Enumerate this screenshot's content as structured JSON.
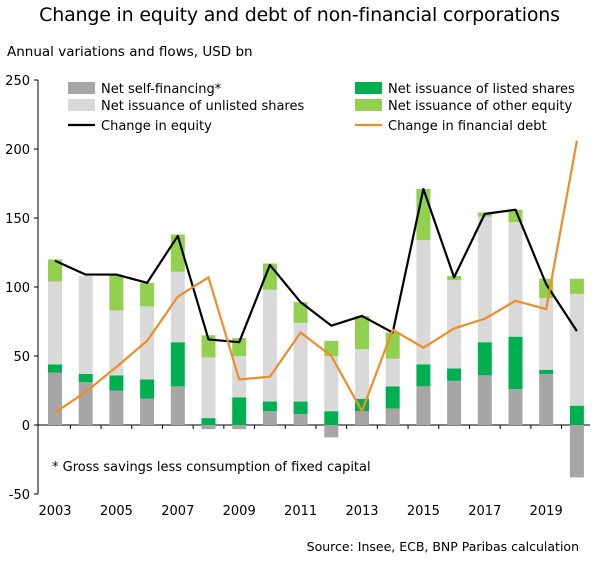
{
  "title": "Change in equity and debt of non-financial corporations",
  "subtitle": "Annual variations and flows, USD bn",
  "source": "Source: Insee, ECB, BNP Paribas calculation",
  "footnote": "* Gross savings less consumption of fixed capital",
  "chart_data": {
    "type": "bar",
    "stacked": true,
    "ylim": [
      -50,
      250
    ],
    "yticks": [
      -50,
      0,
      50,
      100,
      150,
      200,
      250
    ],
    "x": [
      2003,
      2004,
      2005,
      2006,
      2007,
      2008,
      2009,
      2010,
      2011,
      2012,
      2013,
      2014,
      2015,
      2016,
      2017,
      2018,
      2019,
      2020
    ],
    "xtick_labels": [
      "2003",
      "2005",
      "2007",
      "2009",
      "2011",
      "2013",
      "2015",
      "2017",
      "2019"
    ],
    "grid": false,
    "legend_position": "top",
    "series": [
      {
        "name": "Net self-financing*",
        "kind": "bar",
        "color": "#a6a6a6",
        "values": [
          38,
          31,
          25,
          19,
          28,
          -3,
          -3,
          10,
          8,
          -9,
          10,
          12,
          28,
          32,
          36,
          26,
          37,
          -38
        ]
      },
      {
        "name": "Net issuance of listed shares",
        "kind": "bar",
        "color": "#00b050",
        "values": [
          6,
          6,
          11,
          14,
          32,
          5,
          20,
          7,
          9,
          10,
          9,
          16,
          16,
          9,
          24,
          38,
          3,
          14
        ]
      },
      {
        "name": "Net issuance of unlisted shares",
        "kind": "bar",
        "color": "#d9d9d9",
        "values": [
          60,
          71,
          47,
          53,
          51,
          44,
          30,
          81,
          57,
          40,
          36,
          20,
          90,
          64,
          91,
          83,
          52,
          81
        ]
      },
      {
        "name": "Net issuance of other equity",
        "kind": "bar",
        "color": "#92d050",
        "values": [
          16,
          0,
          26,
          17,
          27,
          16,
          13,
          19,
          15,
          11,
          24,
          19,
          37,
          3,
          3,
          9,
          14,
          11
        ]
      },
      {
        "name": "Change in equity",
        "kind": "line",
        "color": "#000000",
        "values": [
          119,
          109,
          109,
          103,
          137,
          62,
          60,
          116,
          89,
          72,
          79,
          67,
          171,
          107,
          153,
          156,
          102,
          68
        ]
      },
      {
        "name": "Change in financial debt",
        "kind": "line",
        "color": "#f08c28",
        "values": [
          9,
          24,
          42,
          61,
          93,
          107,
          33,
          35,
          67,
          50,
          10,
          69,
          56,
          70,
          77,
          90,
          84,
          206
        ]
      }
    ]
  }
}
